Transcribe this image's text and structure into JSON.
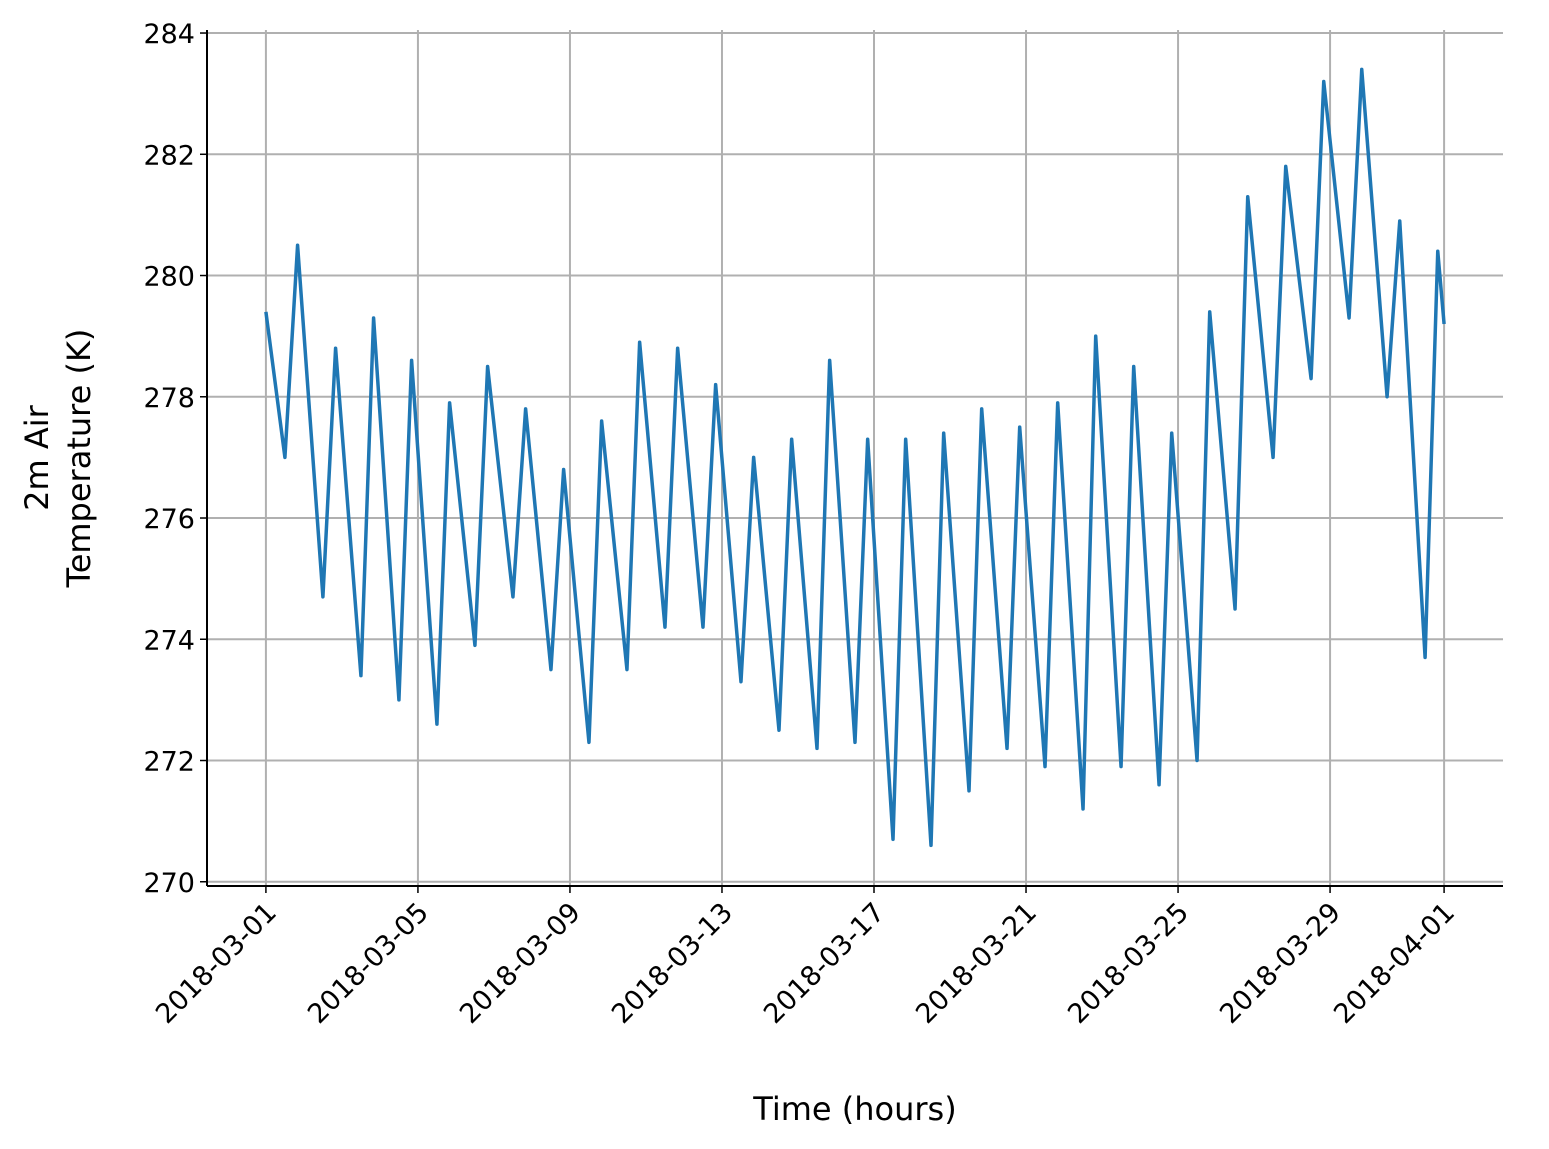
{
  "chart_data": {
    "type": "line",
    "xlabel": "Time (hours)",
    "ylabel": [
      "2m Air",
      "Temperature (K)"
    ],
    "x": [
      "2018-03-01 00:00",
      "2018-03-01 12:00",
      "2018-03-01 20:00",
      "2018-03-02 12:00",
      "2018-03-02 20:00",
      "2018-03-03 12:00",
      "2018-03-03 20:00",
      "2018-03-04 12:00",
      "2018-03-04 20:00",
      "2018-03-05 12:00",
      "2018-03-05 20:00",
      "2018-03-06 12:00",
      "2018-03-06 20:00",
      "2018-03-07 12:00",
      "2018-03-07 20:00",
      "2018-03-08 12:00",
      "2018-03-08 20:00",
      "2018-03-09 12:00",
      "2018-03-09 20:00",
      "2018-03-10 12:00",
      "2018-03-10 20:00",
      "2018-03-11 12:00",
      "2018-03-11 20:00",
      "2018-03-12 12:00",
      "2018-03-12 20:00",
      "2018-03-13 12:00",
      "2018-03-13 20:00",
      "2018-03-14 12:00",
      "2018-03-14 20:00",
      "2018-03-15 12:00",
      "2018-03-15 20:00",
      "2018-03-16 12:00",
      "2018-03-16 20:00",
      "2018-03-17 12:00",
      "2018-03-17 20:00",
      "2018-03-18 12:00",
      "2018-03-18 20:00",
      "2018-03-19 12:00",
      "2018-03-19 20:00",
      "2018-03-20 12:00",
      "2018-03-20 20:00",
      "2018-03-21 12:00",
      "2018-03-21 20:00",
      "2018-03-22 12:00",
      "2018-03-22 20:00",
      "2018-03-23 12:00",
      "2018-03-23 20:00",
      "2018-03-24 12:00",
      "2018-03-24 20:00",
      "2018-03-25 12:00",
      "2018-03-25 20:00",
      "2018-03-26 12:00",
      "2018-03-26 20:00",
      "2018-03-27 12:00",
      "2018-03-27 20:00",
      "2018-03-28 12:00",
      "2018-03-28 20:00",
      "2018-03-29 12:00",
      "2018-03-29 20:00",
      "2018-03-30 12:00",
      "2018-03-30 20:00",
      "2018-03-31 12:00",
      "2018-03-31 20:00",
      "2018-04-01 00:00"
    ],
    "series": [
      {
        "name": "2m Air Temperature",
        "color": "#1f77b4",
        "values": [
          279.4,
          277.0,
          280.5,
          274.7,
          278.8,
          273.4,
          279.3,
          273.0,
          278.6,
          272.6,
          277.9,
          273.9,
          278.5,
          274.7,
          277.8,
          273.5,
          276.8,
          272.3,
          277.6,
          273.5,
          278.9,
          274.2,
          278.8,
          274.2,
          278.2,
          273.3,
          277.0,
          272.5,
          277.3,
          272.2,
          278.6,
          272.3,
          277.3,
          270.7,
          277.3,
          270.6,
          277.4,
          271.5,
          277.8,
          272.2,
          277.5,
          271.9,
          277.9,
          271.2,
          279.0,
          271.9,
          278.5,
          271.6,
          277.4,
          272.0,
          279.4,
          274.5,
          281.3,
          277.0,
          281.8,
          278.3,
          283.2,
          279.3,
          283.4,
          278.0,
          280.9,
          273.7,
          280.4,
          279.2
        ]
      }
    ],
    "xlim": [
      "2018-02-27 10:48",
      "2018-04-02 13:12"
    ],
    "xticks": [
      "2018-03-01",
      "2018-03-05",
      "2018-03-09",
      "2018-03-13",
      "2018-03-17",
      "2018-03-21",
      "2018-03-25",
      "2018-03-29",
      "2018-04-01"
    ],
    "ylim": [
      269.93,
      284.05
    ],
    "yticks": [
      270,
      272,
      274,
      276,
      278,
      280,
      282,
      284
    ],
    "grid": true
  }
}
